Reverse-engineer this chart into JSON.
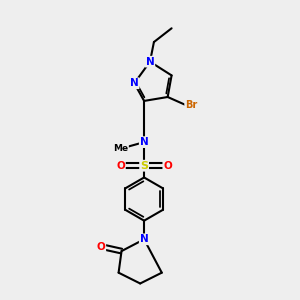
{
  "bg_color": "#eeeeee",
  "atom_colors": {
    "C": "#000000",
    "N": "#0000ff",
    "O": "#ff0000",
    "S": "#cccc00",
    "Br": "#cc6600"
  },
  "bond_color": "#000000",
  "bond_width": 1.5
}
